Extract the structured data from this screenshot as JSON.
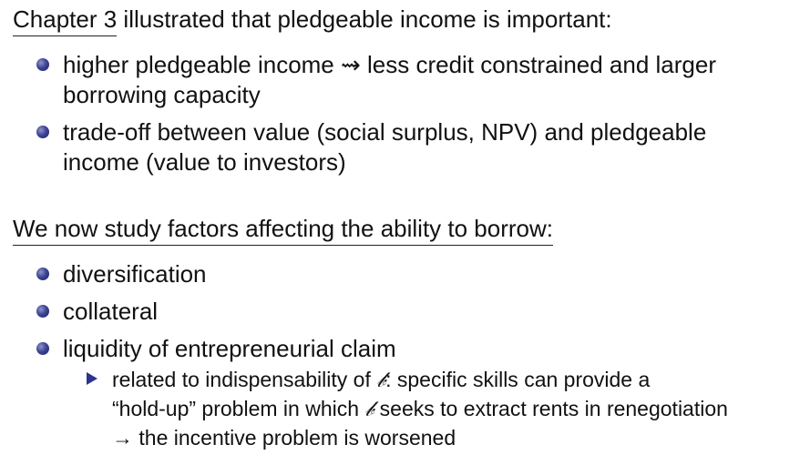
{
  "section1": {
    "heading_underlined": "Chapter 3",
    "heading_rest": " illustrated that pledgeable income is important:",
    "bullets": [
      {
        "text_before": "higher pledgeable income ",
        "arrow": "⇝",
        "text_after": " less credit constrained and larger",
        "line2": "borrowing capacity"
      },
      {
        "line1": "trade-off between value (social surplus, NPV) and pledgeable",
        "line2": "income (value to investors)"
      }
    ]
  },
  "section2": {
    "heading": "We now study factors affecting the ability to borrow:",
    "bullets": [
      {
        "text": "diversification"
      },
      {
        "text": "collateral"
      },
      {
        "text": "liquidity of entrepreneurial claim"
      }
    ],
    "sub_bullet": {
      "line1_before": "related to indispensability of ",
      "symbol": "𝒷",
      "line1_after": ": specific skills can provide a",
      "line2_before": "“hold-up” problem in which ",
      "line2_after": " seeks to extract rents in renegotiation",
      "line3_arrow": "→",
      "line3_text": " the incentive problem is worsened"
    }
  },
  "colors": {
    "bullet": "#3e4597",
    "text": "#111111",
    "background": "#ffffff"
  }
}
